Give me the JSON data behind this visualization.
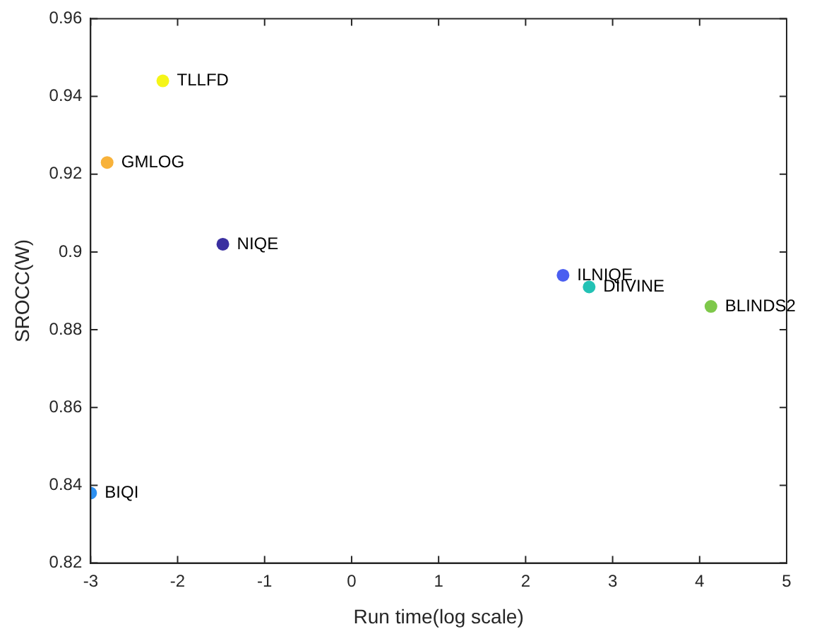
{
  "chart_data": {
    "type": "scatter",
    "xlabel": "Run time(log scale)",
    "ylabel": "SROCC(W)",
    "xlim": [
      -3,
      5
    ],
    "xticks": [
      -3,
      -2,
      -1,
      0,
      1,
      2,
      3,
      4,
      5
    ],
    "ylim": [
      0.82,
      0.96
    ],
    "yticks": [
      0.82,
      0.84,
      0.86,
      0.88,
      0.9,
      0.92,
      0.94,
      0.96
    ],
    "grid": false,
    "legend": false,
    "marker": "circle",
    "series": [
      {
        "name": "TLLFD",
        "color": "#f5f518",
        "x": [
          -2.17
        ],
        "values": [
          0.944
        ]
      },
      {
        "name": "GMLOG",
        "color": "#f8b23a",
        "x": [
          -2.81
        ],
        "values": [
          0.923
        ]
      },
      {
        "name": "NIQE",
        "color": "#3a2fa0",
        "x": [
          -1.48
        ],
        "values": [
          0.902
        ]
      },
      {
        "name": "ILNIQE",
        "color": "#4a5ef0",
        "x": [
          2.43
        ],
        "values": [
          0.894
        ]
      },
      {
        "name": "DIIVINE",
        "color": "#23c2b5",
        "x": [
          2.73
        ],
        "values": [
          0.891
        ]
      },
      {
        "name": "BLINDS2",
        "color": "#7ec84a",
        "x": [
          4.13
        ],
        "values": [
          0.886
        ]
      },
      {
        "name": "BIQI",
        "color": "#2c8ff0",
        "x": [
          -3.0
        ],
        "values": [
          0.838
        ]
      }
    ]
  }
}
